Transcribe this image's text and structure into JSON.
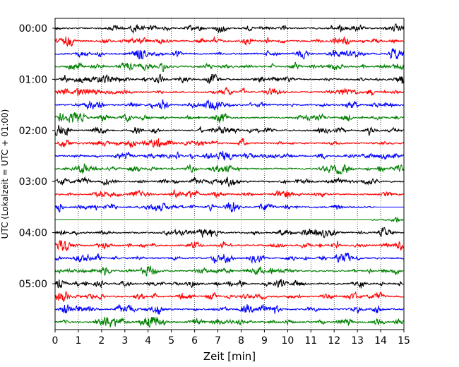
{
  "chart_data": {
    "type": "line",
    "title": "",
    "xlabel": "Zeit  [min]",
    "ylabel": "UTC (Lokalzeit = UTC + 01:00)",
    "xlim": [
      0,
      15
    ],
    "x_ticks": [
      "0",
      "1",
      "2",
      "3",
      "4",
      "5",
      "6",
      "7",
      "8",
      "9",
      "10",
      "11",
      "12",
      "13",
      "14",
      "15"
    ],
    "y_ticks": [
      "00:00",
      "01:00",
      "02:00",
      "03:00",
      "04:00",
      "05:00"
    ],
    "x_grid": true,
    "trace_interval_min": 15,
    "trace_colors": [
      "#000000",
      "#ff0000",
      "#0000ff",
      "#008000"
    ],
    "traces": [
      {
        "start": "00:00",
        "color": "#000000"
      },
      {
        "start": "00:15",
        "color": "#ff0000"
      },
      {
        "start": "00:30",
        "color": "#0000ff"
      },
      {
        "start": "00:45",
        "color": "#008000"
      },
      {
        "start": "01:00",
        "color": "#000000"
      },
      {
        "start": "01:15",
        "color": "#ff0000"
      },
      {
        "start": "01:30",
        "color": "#0000ff"
      },
      {
        "start": "01:45",
        "color": "#008000"
      },
      {
        "start": "02:00",
        "color": "#000000"
      },
      {
        "start": "02:15",
        "color": "#ff0000"
      },
      {
        "start": "02:30",
        "color": "#0000ff"
      },
      {
        "start": "02:45",
        "color": "#008000"
      },
      {
        "start": "03:00",
        "color": "#000000"
      },
      {
        "start": "03:15",
        "color": "#ff0000"
      },
      {
        "start": "03:30",
        "color": "#0000ff",
        "flat_from_min": 13.8
      },
      {
        "start": "03:45",
        "color": "#008000",
        "flat_until_min": 13.6
      },
      {
        "start": "04:00",
        "color": "#000000"
      },
      {
        "start": "04:15",
        "color": "#ff0000"
      },
      {
        "start": "04:30",
        "color": "#0000ff"
      },
      {
        "start": "04:45",
        "color": "#008000"
      },
      {
        "start": "05:00",
        "color": "#000000"
      },
      {
        "start": "05:15",
        "color": "#ff0000"
      },
      {
        "start": "05:30",
        "color": "#0000ff"
      },
      {
        "start": "05:45",
        "color": "#008000"
      }
    ]
  }
}
